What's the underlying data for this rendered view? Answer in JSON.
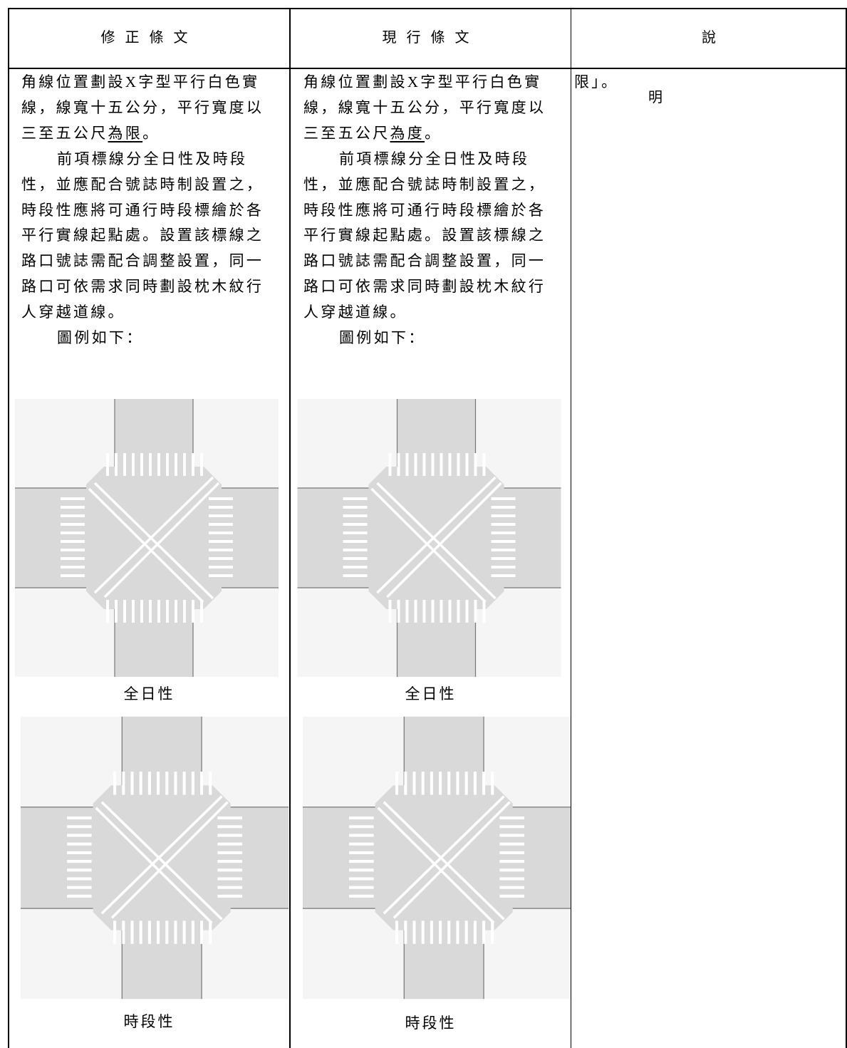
{
  "table": {
    "header": [
      "修正條文",
      "現行條文",
      "說明"
    ],
    "col1": {
      "lines": [
        "角線位置劃設X字型平行白色實",
        "線，線寬十五公分，平行寬度以",
        [
          "三至五公尺",
          "為限",
          "。"
        ],
        "前項標線分全日性及時段",
        "性，並應配合號誌時制設置之，",
        "時段性應將可通行時段標繪於各",
        "平行實線起點處。設置該標線之",
        "路口號誌需配合調整設置，同一",
        "路口可依需求同時劃設枕木紋行",
        "人穿越道線。",
        "圖例如下："
      ],
      "captions": [
        "全日性",
        "時段性"
      ]
    },
    "col2": {
      "lines": [
        "角線位置劃設X字型平行白色實",
        "線，線寬十五公分，平行寬度以",
        [
          "三至五公尺",
          "為度",
          "。"
        ],
        "前項標線分全日性及時段",
        "性，並應配合號誌時制設置之，",
        "時段性應將可通行時段標繪於各",
        "平行實線起點處。設置該標線之",
        "路口號誌需配合調整設置，同一",
        "路口可依需求同時劃設枕木紋行",
        "人穿越道線。",
        "圖例如下："
      ],
      "captions": [
        "全日性",
        "時段性"
      ]
    },
    "col3": {
      "lines": [
        "限」。"
      ]
    }
  }
}
